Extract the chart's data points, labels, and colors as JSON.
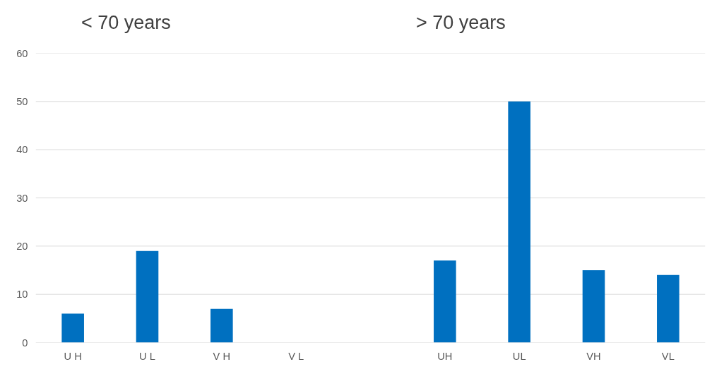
{
  "chart_data": {
    "type": "bar",
    "categories": [
      "U H",
      "U L",
      "V H",
      "V L",
      null,
      "UH",
      "UL",
      "VH",
      "VL"
    ],
    "values": [
      6,
      19,
      7,
      0,
      null,
      17,
      50,
      15,
      14
    ],
    "color": "#0070c0",
    "annotations": [
      "< 70 years",
      "> 70 years"
    ],
    "ylim": [
      0,
      60
    ],
    "yticks": [
      0,
      10,
      20,
      30,
      40,
      50,
      60
    ],
    "grid": "y"
  }
}
